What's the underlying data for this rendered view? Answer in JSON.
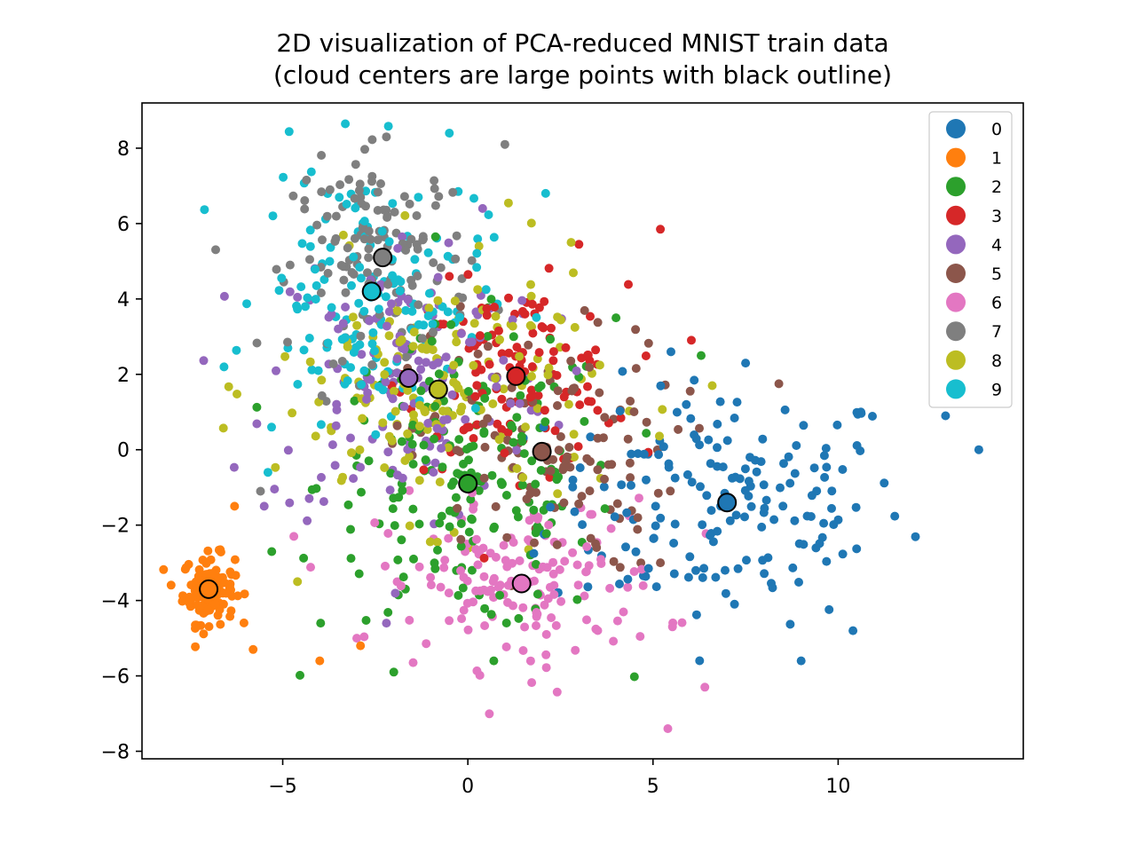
{
  "chart_data": {
    "type": "scatter",
    "title_lines": [
      "2D visualization of PCA-reduced MNIST train data",
      "(cloud centers are large points with black outline)"
    ],
    "xlabel": "",
    "ylabel": "",
    "xlim": [
      -8.8,
      15.0
    ],
    "ylim": [
      -8.2,
      9.2
    ],
    "x_ticks": [
      -5,
      0,
      5,
      10
    ],
    "x_tick_labels": [
      "−5",
      "0",
      "5",
      "10"
    ],
    "y_ticks": [
      8,
      6,
      4,
      2,
      0,
      -2,
      -4,
      -6,
      -8
    ],
    "y_tick_labels": [
      "8",
      "6",
      "4",
      "2",
      "0",
      "−2",
      "−4",
      "−6",
      "−8"
    ],
    "grid": false,
    "legend_placement": "top-right",
    "series": [
      {
        "name": "0",
        "color": "#1f77b4",
        "center": [
          7.0,
          -1.4
        ],
        "spread": [
          2.4,
          1.6
        ],
        "n": 170,
        "extremes": [
          [
            13.8,
            0.0
          ],
          [
            12.9,
            0.9
          ],
          [
            9.0,
            -5.6
          ],
          [
            5.9,
            1.2
          ],
          [
            7.5,
            2.3
          ],
          [
            10.4,
            -4.8
          ]
        ]
      },
      {
        "name": "1",
        "color": "#ff7f0e",
        "center": [
          -7.0,
          -3.7
        ],
        "spread": [
          0.35,
          0.45
        ],
        "n": 120,
        "extremes": [
          [
            -4.0,
            -5.6
          ],
          [
            -2.9,
            -5.2
          ],
          [
            -6.3,
            -1.5
          ],
          [
            -5.8,
            -5.3
          ]
        ]
      },
      {
        "name": "2",
        "color": "#2ca02c",
        "center": [
          0.0,
          -0.9
        ],
        "spread": [
          2.0,
          2.0
        ],
        "n": 190,
        "extremes": [
          [
            -2.0,
            -5.9
          ],
          [
            0.7,
            -5.6
          ],
          [
            6.3,
            2.5
          ],
          [
            4.0,
            3.5
          ]
        ]
      },
      {
        "name": "3",
        "color": "#d62728",
        "center": [
          1.3,
          1.95
        ],
        "spread": [
          1.5,
          1.2
        ],
        "n": 120,
        "extremes": [
          [
            5.2,
            5.85
          ],
          [
            3.0,
            5.45
          ],
          [
            -0.5,
            4.6
          ]
        ]
      },
      {
        "name": "4",
        "color": "#9467bd",
        "center": [
          -1.6,
          1.9
        ],
        "spread": [
          1.9,
          2.0
        ],
        "n": 150,
        "extremes": [
          [
            -5.5,
            -1.5
          ],
          [
            -2.2,
            -4.6
          ],
          [
            0.4,
            6.4
          ]
        ]
      },
      {
        "name": "5",
        "color": "#8c564b",
        "center": [
          2.0,
          -0.05
        ],
        "spread": [
          1.8,
          1.6
        ],
        "n": 120,
        "extremes": [
          [
            8.4,
            1.75
          ],
          [
            5.2,
            -3.0
          ],
          [
            -0.2,
            3.8
          ]
        ]
      },
      {
        "name": "6",
        "color": "#e377c2",
        "center": [
          1.45,
          -3.55
        ],
        "spread": [
          1.9,
          1.1
        ],
        "n": 150,
        "extremes": [
          [
            5.4,
            -7.4
          ],
          [
            6.4,
            -6.3
          ],
          [
            -3.0,
            -5.0
          ],
          [
            -4.7,
            -2.3
          ]
        ]
      },
      {
        "name": "7",
        "color": "#7f7f7f",
        "center": [
          -2.3,
          5.1
        ],
        "spread": [
          1.2,
          1.3
        ],
        "n": 140,
        "extremes": [
          [
            1.0,
            8.1
          ],
          [
            -2.2,
            8.3
          ],
          [
            -4.8,
            4.9
          ],
          [
            -5.6,
            -1.1
          ]
        ]
      },
      {
        "name": "8",
        "color": "#bcbd22",
        "center": [
          -0.8,
          1.6
        ],
        "spread": [
          2.2,
          1.7
        ],
        "n": 160,
        "extremes": [
          [
            6.6,
            1.7
          ],
          [
            -4.6,
            -3.5
          ],
          [
            0.3,
            5.4
          ]
        ]
      },
      {
        "name": "9",
        "color": "#17becf",
        "center": [
          -2.6,
          4.2
        ],
        "spread": [
          1.5,
          1.7
        ],
        "n": 150,
        "extremes": [
          [
            -0.5,
            8.4
          ],
          [
            -5.4,
            -0.6
          ],
          [
            2.1,
            6.8
          ],
          [
            -5.3,
            0.6
          ]
        ]
      }
    ]
  }
}
